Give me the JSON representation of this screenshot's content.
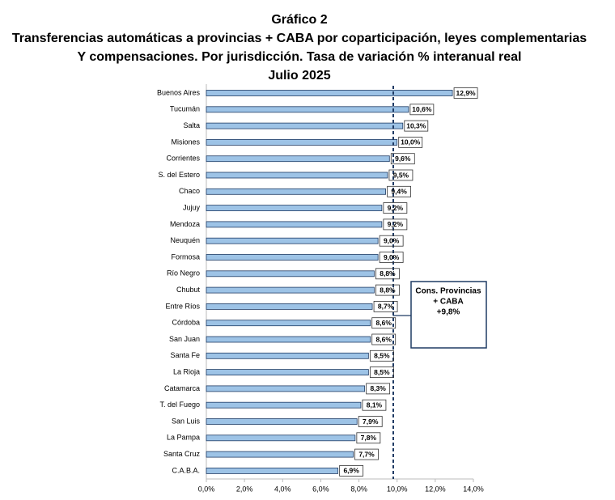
{
  "chart_data": {
    "type": "bar",
    "orientation": "horizontal",
    "title_lines": [
      "Gráfico 2",
      "Transferencias  automáticas  a provincias  + CABA por coparticipación,  leyes complementarias",
      "Y compensaciones.  Por jurisdicción.  Tasa de variación  % interanual  real",
      "Julio 2025"
    ],
    "categories": [
      "Buenos Aires",
      "Tucumán",
      "Salta",
      "Misiones",
      "Corrientes",
      "S. del Estero",
      "Chaco",
      "Jujuy",
      "Mendoza",
      "Neuquén",
      "Formosa",
      "Río Negro",
      "Chubut",
      "Entre Ríos",
      "Córdoba",
      "San Juan",
      "Santa Fe",
      "La Rioja",
      "Catamarca",
      "T. del Fuego",
      "San Luis",
      "La Pampa",
      "Santa Cruz",
      "C.A.B.A."
    ],
    "values": [
      12.9,
      10.6,
      10.3,
      10.0,
      9.6,
      9.5,
      9.4,
      9.2,
      9.2,
      9.0,
      9.0,
      8.8,
      8.8,
      8.7,
      8.6,
      8.6,
      8.5,
      8.5,
      8.3,
      8.1,
      7.9,
      7.8,
      7.7,
      6.9
    ],
    "value_labels": [
      "12,9%",
      "10,6%",
      "10,3%",
      "10,0%",
      "9,6%",
      "9,5%",
      "9,4%",
      "9,2%",
      "9,2%",
      "9,0%",
      "9,0%",
      "8,8%",
      "8,8%",
      "8,7%",
      "8,6%",
      "8,6%",
      "8,5%",
      "8,5%",
      "8,3%",
      "8,1%",
      "7,9%",
      "7,8%",
      "7,7%",
      "6,9%"
    ],
    "color": "#9dc3e6",
    "xlim": [
      0,
      14
    ],
    "xticks": [
      {
        "value": 0,
        "label": "0,0%"
      },
      {
        "value": 2,
        "label": "2,0%"
      },
      {
        "value": 4,
        "label": "4,0%"
      },
      {
        "value": 6,
        "label": "6,0%"
      },
      {
        "value": 8,
        "label": "8,0%"
      },
      {
        "value": 10,
        "label": "10,0%"
      },
      {
        "value": 12,
        "label": "12,0%"
      },
      {
        "value": 14,
        "label": "14,0%"
      }
    ],
    "reference_line": {
      "value": 9.8,
      "label_lines": [
        "Cons. Provincias",
        "+ CABA",
        "+9,8%"
      ]
    }
  }
}
